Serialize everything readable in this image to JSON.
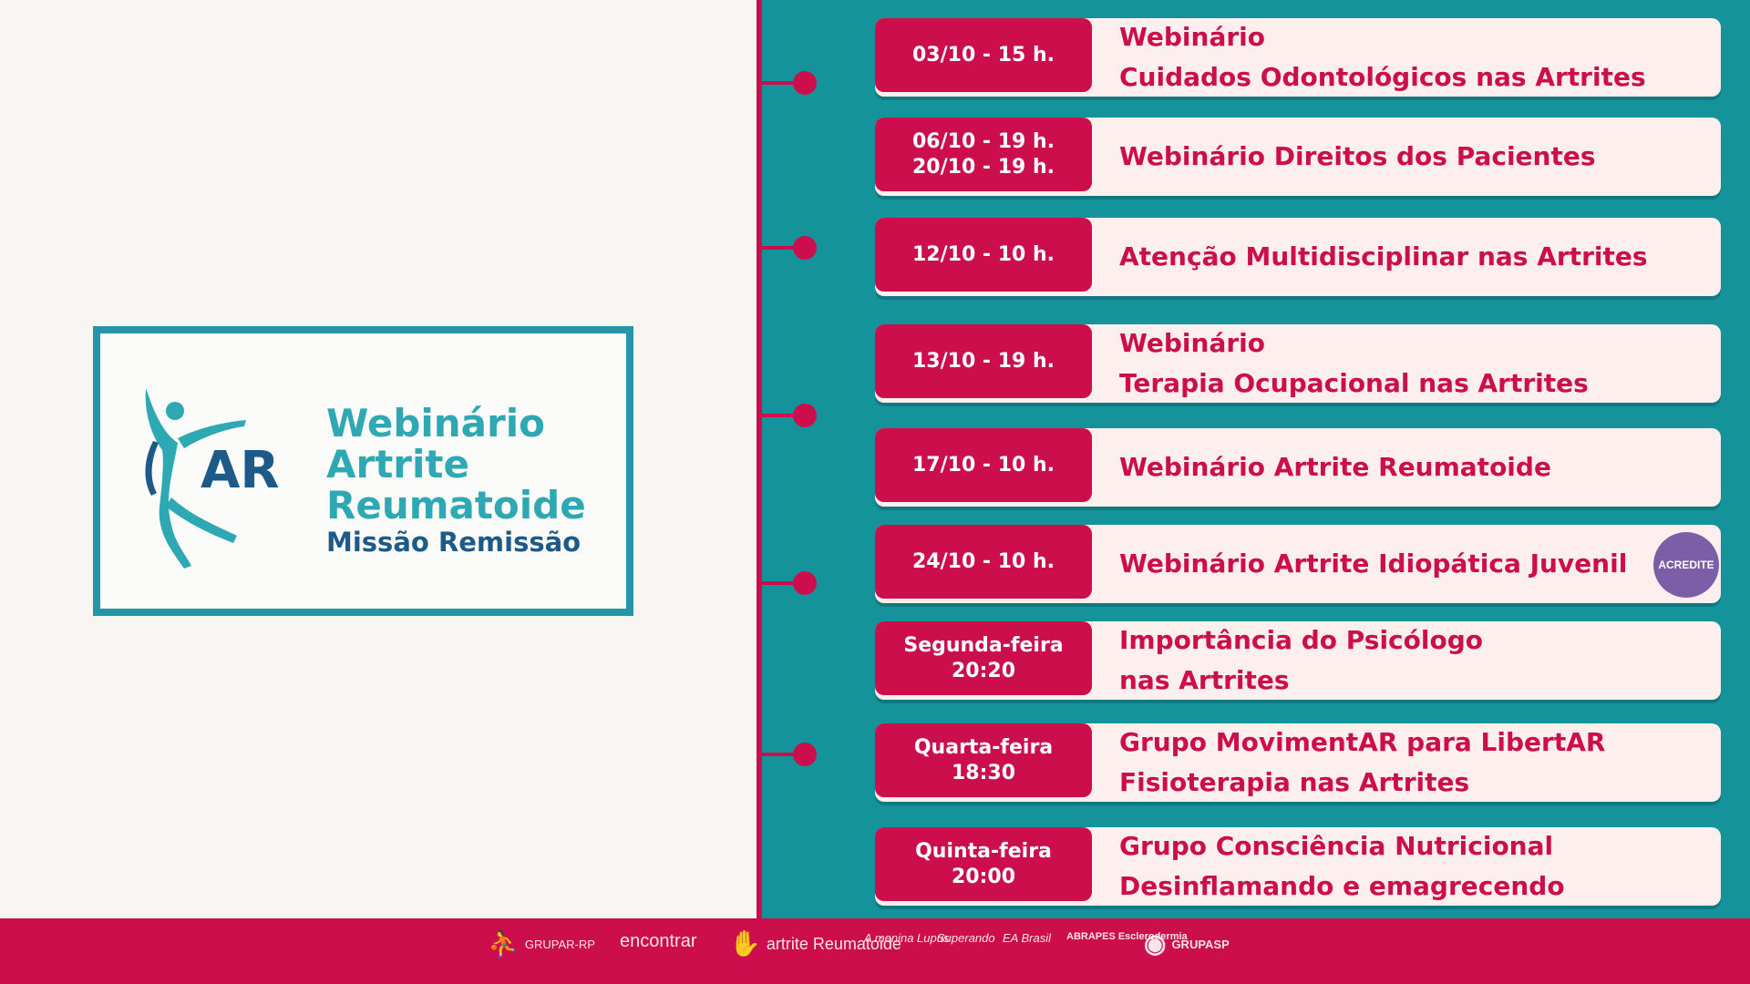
{
  "logo": {
    "mark": "AR",
    "title_lines": [
      "Webinário",
      "Artrite",
      "Reumatoide"
    ],
    "subtitle": "Missão Remissão"
  },
  "events": [
    {
      "date": "03/10 - 15 h.",
      "title": "Webinário\nCuidados Odontológicos nas Artrites"
    },
    {
      "date": "06/10 - 19 h.\n20/10 - 19 h.",
      "title": "Webinário Direitos dos Pacientes"
    },
    {
      "date": "12/10 - 10 h.",
      "title": "Atenção Multidisciplinar nas Artrites"
    },
    {
      "date": "13/10 - 19 h.",
      "title": "Webinário\nTerapia Ocupacional nas Artrites"
    },
    {
      "date": "17/10 - 10 h.",
      "title": "Webinário Artrite Reumatoide"
    },
    {
      "date": "24/10 - 10 h.",
      "title": "Webinário Artrite Idiopática Juvenil",
      "badge": "ACREDITE"
    },
    {
      "date": "Segunda-feira\n20:20",
      "title": "Importância do Psicólogo\nnas Artrites"
    },
    {
      "date": "Quarta-feira\n18:30",
      "title": "Grupo MovimentAR para LibertAR\nFisioterapia nas  Artrites"
    },
    {
      "date": "Quinta-feira\n20:00",
      "title": "Grupo Consciência Nutricional\nDesinflamando e emagrecendo"
    }
  ],
  "footer_logos": [
    "GRUPAR-RP",
    "encontrar",
    "artrite Reumatoide",
    "A menina Lupus",
    "Superando",
    "EA Brasil",
    "ABRAPES Esclerodermia",
    "GRUPASP"
  ],
  "colors": {
    "accent": "#cc0f4c",
    "teal": "#14939b",
    "logo_blue": "#1e5a88",
    "logo_teal": "#2ea8b3"
  }
}
